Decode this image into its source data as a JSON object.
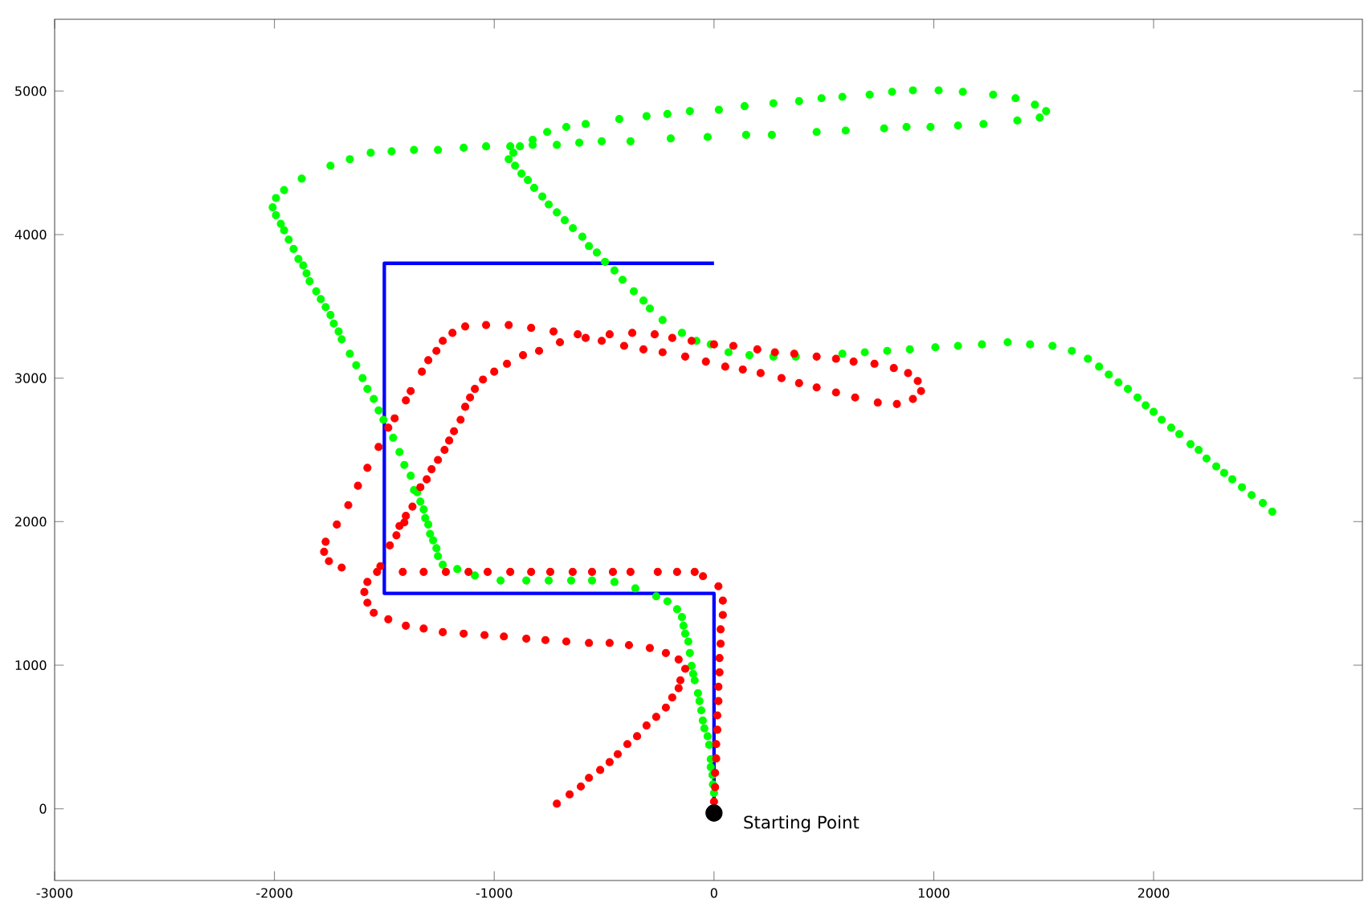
{
  "chart_data": {
    "type": "scatter",
    "marker": "circle",
    "xlim": [
      -3000,
      2950
    ],
    "ylim": [
      -500,
      5500
    ],
    "xticks": [
      -3000,
      -2000,
      -1000,
      0,
      1000,
      2000
    ],
    "yticks": [
      0,
      1000,
      2000,
      3000,
      4000,
      5000
    ],
    "annotations": [
      {
        "text": "Starting Point",
        "x": 0,
        "y": -30
      }
    ],
    "series": [
      {
        "type": "line",
        "marker": "none",
        "color": "#0000ff",
        "x": [
          0,
          0,
          -1500,
          -1500,
          0
        ],
        "values": [
          0,
          1500,
          1500,
          3800,
          3800
        ]
      },
      {
        "color": "#00ff00",
        "x": [
          0,
          -5,
          -7,
          -15,
          -15,
          -22,
          -29,
          -44,
          -51,
          -58,
          -66,
          -73,
          -88,
          -95,
          -102,
          -110,
          -117,
          -131,
          -139,
          -146,
          -168,
          -212,
          -263,
          -358,
          -453,
          -555,
          -650,
          -752,
          -854,
          -971,
          -1088,
          -1168,
          -1234,
          -1256,
          -1263,
          -1278,
          -1292,
          -1300,
          -1314,
          -1321,
          -1336,
          -1350,
          -1365,
          -1380,
          -1409,
          -1431,
          -1460,
          -1504,
          -1526,
          -1548,
          -1577,
          -1599,
          -1628,
          -1657,
          -1694,
          -1708,
          -1730,
          -1745,
          -1767,
          -1789,
          -1810,
          -1840,
          -1854,
          -1869,
          -1891,
          -1913,
          -1935,
          -1956,
          -1971,
          -1993,
          -2008,
          -1993,
          -1956,
          -1876,
          -1745,
          -1657,
          -1562,
          -1467,
          -1365,
          -1256,
          -1139,
          -1037,
          -927,
          -883,
          -825,
          -759,
          -672,
          -584,
          -431,
          -307,
          -212,
          -110,
          22,
          139,
          270,
          387,
          489,
          584,
          708,
          810,
          905,
          1022,
          1132,
          1270,
          1372,
          1460,
          1511,
          1482,
          1380,
          1226,
          1110,
          985,
          876,
          774,
          599,
          467,
          263,
          146,
          -29,
          -197,
          -380,
          -511,
          -613,
          -715,
          -825,
          -913,
          -934,
          -905,
          -876,
          -847,
          -818,
          -781,
          -752,
          -715,
          -679,
          -642,
          -599,
          -569,
          -533,
          -496,
          -453,
          -416,
          -365,
          -321,
          -292,
          -234,
          -146,
          -80,
          -15,
          66,
          161,
          270,
          372,
          584,
          686,
          788,
          891,
          1007,
          1110,
          1219,
          1336,
          1438,
          1540,
          1628,
          1701,
          1752,
          1796,
          1840,
          1883,
          1927,
          1964,
          2000,
          2037,
          2080,
          2117,
          2168,
          2205,
          2241,
          2285,
          2321,
          2358,
          2402,
          2446,
          2497,
          2540
        ],
        "values": [
          110,
          170,
          235,
          290,
          345,
          445,
          505,
          560,
          615,
          685,
          750,
          805,
          895,
          940,
          995,
          1085,
          1165,
          1220,
          1275,
          1335,
          1390,
          1445,
          1480,
          1535,
          1580,
          1590,
          1590,
          1590,
          1590,
          1590,
          1625,
          1670,
          1700,
          1760,
          1815,
          1870,
          1915,
          1980,
          2025,
          2085,
          2140,
          2205,
          2220,
          2320,
          2395,
          2485,
          2585,
          2710,
          2775,
          2855,
          2925,
          3000,
          3090,
          3170,
          3270,
          3325,
          3380,
          3440,
          3495,
          3550,
          3605,
          3675,
          3730,
          3785,
          3830,
          3900,
          3965,
          4030,
          4075,
          4135,
          4190,
          4255,
          4310,
          4390,
          4480,
          4525,
          4570,
          4580,
          4590,
          4590,
          4605,
          4615,
          4615,
          4615,
          4660,
          4715,
          4750,
          4770,
          4805,
          4825,
          4840,
          4860,
          4870,
          4895,
          4915,
          4930,
          4950,
          4960,
          4975,
          4995,
          5005,
          5005,
          4995,
          4975,
          4950,
          4905,
          4860,
          4815,
          4795,
          4770,
          4760,
          4750,
          4750,
          4740,
          4725,
          4715,
          4695,
          4695,
          4680,
          4670,
          4650,
          4650,
          4640,
          4625,
          4625,
          4570,
          4525,
          4480,
          4425,
          4380,
          4325,
          4265,
          4210,
          4155,
          4100,
          4045,
          3985,
          3920,
          3875,
          3810,
          3750,
          3685,
          3605,
          3540,
          3485,
          3405,
          3315,
          3260,
          3235,
          3180,
          3160,
          3150,
          3150,
          3170,
          3180,
          3190,
          3200,
          3215,
          3225,
          3235,
          3250,
          3235,
          3225,
          3190,
          3135,
          3080,
          3025,
          2970,
          2925,
          2865,
          2810,
          2765,
          2710,
          2655,
          2610,
          2540,
          2500,
          2440,
          2385,
          2340,
          2295,
          2240,
          2185,
          2130,
          2070
        ]
      },
      {
        "color": "#ff0000",
        "x": [
          0,
          5,
          5,
          10,
          10,
          15,
          15,
          20,
          20,
          25,
          25,
          30,
          30,
          40,
          40,
          20,
          -50,
          -88,
          -168,
          -256,
          -380,
          -460,
          -555,
          -643,
          -745,
          -832,
          -927,
          -1030,
          -1117,
          -1220,
          -1321,
          -1416,
          -1533,
          -1694,
          -1752,
          -1774,
          -1767,
          -1716,
          -1664,
          -1620,
          -1577,
          -1526,
          -1482,
          -1453,
          -1402,
          -1380,
          -1329,
          -1300,
          -1263,
          -1234,
          -1190,
          -1132,
          -1037,
          -934,
          -832,
          -730,
          -620,
          -475,
          -372,
          -270,
          -190,
          -102,
          0,
          88,
          197,
          277,
          365,
          467,
          555,
          635,
          730,
          818,
          883,
          927,
          942,
          905,
          832,
          745,
          642,
          555,
          467,
          387,
          307,
          212,
          131,
          51,
          -37,
          -131,
          -234,
          -321,
          -409,
          -511,
          -584,
          -701,
          -796,
          -869,
          -942,
          -1000,
          -1051,
          -1088,
          -1110,
          -1132,
          -1153,
          -1183,
          -1205,
          -1226,
          -1256,
          -1285,
          -1307,
          -1336,
          -1372,
          -1402,
          -1409,
          -1431,
          -1445,
          -1475,
          -1518,
          -1577,
          -1591,
          -1577,
          -1548,
          -1482,
          -1402,
          -1321,
          -1234,
          -1139,
          -1044,
          -956,
          -854,
          -767,
          -672,
          -569,
          -475,
          -387,
          -292,
          -219,
          -161,
          -131,
          -153,
          -161,
          -190,
          -219,
          -263,
          -307,
          -350,
          -394,
          -438,
          -475,
          -518,
          -569,
          -606,
          -657,
          -715
        ],
        "values": [
          50,
          150,
          250,
          350,
          450,
          550,
          650,
          750,
          850,
          950,
          1050,
          1150,
          1250,
          1350,
          1450,
          1550,
          1620,
          1650,
          1650,
          1650,
          1650,
          1650,
          1650,
          1650,
          1650,
          1650,
          1650,
          1650,
          1650,
          1650,
          1650,
          1650,
          1650,
          1680,
          1725,
          1790,
          1860,
          1980,
          2115,
          2250,
          2375,
          2520,
          2655,
          2720,
          2845,
          2910,
          3045,
          3125,
          3190,
          3260,
          3315,
          3360,
          3370,
          3370,
          3350,
          3325,
          3305,
          3305,
          3315,
          3305,
          3280,
          3260,
          3235,
          3225,
          3200,
          3180,
          3170,
          3150,
          3135,
          3115,
          3100,
          3070,
          3035,
          2980,
          2910,
          2855,
          2820,
          2830,
          2865,
          2900,
          2935,
          2965,
          3000,
          3035,
          3060,
          3080,
          3115,
          3150,
          3180,
          3200,
          3225,
          3260,
          3280,
          3250,
          3190,
          3160,
          3100,
          3045,
          2990,
          2925,
          2865,
          2800,
          2710,
          2630,
          2565,
          2500,
          2430,
          2365,
          2295,
          2240,
          2105,
          2040,
          1995,
          1970,
          1905,
          1835,
          1690,
          1580,
          1510,
          1435,
          1365,
          1320,
          1275,
          1255,
          1230,
          1220,
          1210,
          1200,
          1185,
          1175,
          1165,
          1155,
          1155,
          1140,
          1120,
          1085,
          1040,
          975,
          895,
          840,
          775,
          705,
          640,
          580,
          505,
          450,
          380,
          325,
          270,
          215,
          155,
          100,
          35
        ]
      },
      {
        "color": "#000000",
        "x": [
          0
        ],
        "values": [
          -30
        ]
      }
    ]
  }
}
